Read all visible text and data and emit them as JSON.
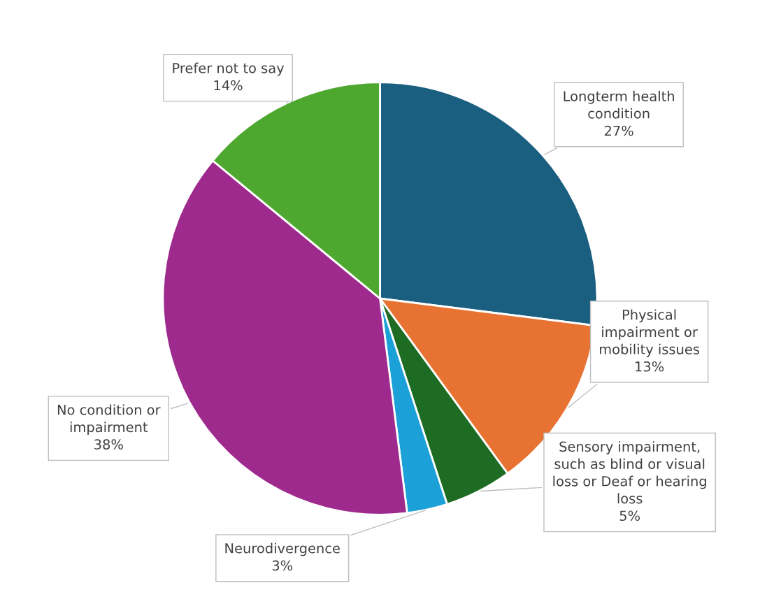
{
  "chart_data": {
    "type": "pie",
    "categories": [
      "Longterm health\ncondition",
      "Physical\nimpairment or\nmobility issues",
      "Sensory impairment,\nsuch as blind or visual\nloss or Deaf or hearing\nloss",
      "Neurodivergence",
      "No condition or\nimpairment",
      "Prefer not to say"
    ],
    "values": [
      27,
      13,
      5,
      3,
      38,
      14
    ],
    "colors": [
      "#1a5e80",
      "#e87232",
      "#1e6b24",
      "#1ba0d8",
      "#9e2a8e",
      "#4ea72e"
    ],
    "value_labels": [
      "27%",
      "13%",
      "5%",
      "3%",
      "38%",
      "14%"
    ],
    "legend": false
  }
}
